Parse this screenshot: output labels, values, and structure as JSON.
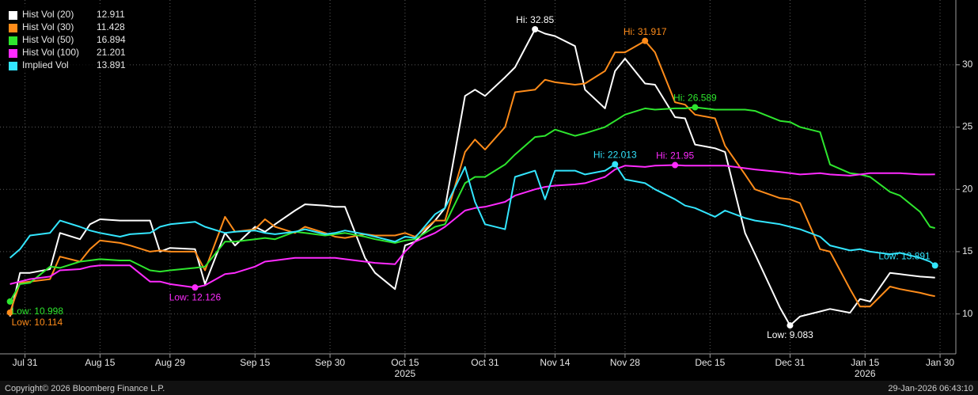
{
  "chart_data": {
    "type": "line",
    "x": [
      "2025-07-28",
      "2025-07-30",
      "2025-08-01",
      "2025-08-05",
      "2025-08-07",
      "2025-08-11",
      "2025-08-13",
      "2025-08-15",
      "2025-08-19",
      "2025-08-21",
      "2025-08-25",
      "2025-08-27",
      "2025-08-29",
      "2025-09-03",
      "2025-09-05",
      "2025-09-09",
      "2025-09-11",
      "2025-09-15",
      "2025-09-17",
      "2025-09-19",
      "2025-09-23",
      "2025-09-25",
      "2025-09-29",
      "2025-10-01",
      "2025-10-03",
      "2025-10-07",
      "2025-10-09",
      "2025-10-13",
      "2025-10-15",
      "2025-10-17",
      "2025-10-21",
      "2025-10-23",
      "2025-10-27",
      "2025-10-29",
      "2025-10-31",
      "2025-11-04",
      "2025-11-06",
      "2025-11-10",
      "2025-11-12",
      "2025-11-14",
      "2025-11-18",
      "2025-11-20",
      "2025-11-24",
      "2025-11-26",
      "2025-11-28",
      "2025-12-02",
      "2025-12-04",
      "2025-12-08",
      "2025-12-10",
      "2025-12-12",
      "2025-12-16",
      "2025-12-18",
      "2025-12-22",
      "2025-12-24",
      "2025-12-29",
      "2025-12-31",
      "2026-01-02",
      "2026-01-06",
      "2026-01-08",
      "2026-01-12",
      "2026-01-14",
      "2026-01-16",
      "2026-01-20",
      "2026-01-22",
      "2026-01-26",
      "2026-01-28",
      "2026-01-29"
    ],
    "series": [
      {
        "name": "Hist Vol (20)",
        "color": "#ffffff",
        "high_label": "Hi: 32.85",
        "low_label": "Low: 9.083",
        "values": [
          9.8,
          13.3,
          13.3,
          13.6,
          16.5,
          16,
          17.2,
          17.6,
          17.5,
          17.5,
          17.5,
          15,
          15.3,
          15.2,
          12.4,
          16.5,
          15.5,
          17,
          16.6,
          17.2,
          18.3,
          18.8,
          18.7,
          18.6,
          18.6,
          14.5,
          13.3,
          12,
          15.5,
          15.8,
          17.5,
          18.5,
          27.5,
          28,
          27.5,
          29,
          29.8,
          32.85,
          32.5,
          32.3,
          31.5,
          28,
          26.5,
          29.5,
          30.5,
          28.5,
          28.4,
          25.8,
          25.7,
          23.6,
          23.3,
          23,
          16.5,
          14.8,
          10.5,
          9.083,
          9.8,
          10.2,
          10.4,
          10.1,
          11.2,
          11,
          13.3,
          13.2,
          13,
          12.95,
          12.911
        ]
      },
      {
        "name": "Hist Vol (30)",
        "color": "#ff8c1a",
        "high_label": "Hi: 31.917",
        "low_label": "Low: 10.114",
        "values": [
          10.114,
          12.5,
          12.6,
          12.8,
          14.6,
          14.2,
          15.2,
          15.9,
          15.7,
          15.5,
          15,
          15.1,
          15,
          15,
          13.5,
          17.8,
          16.6,
          16.8,
          17.6,
          17,
          16.5,
          17,
          16.5,
          16.2,
          16.1,
          16.4,
          16.3,
          16.3,
          16.5,
          16.2,
          17.5,
          17.5,
          23,
          24,
          23.2,
          25,
          27.8,
          28,
          28.8,
          28.6,
          28.4,
          28.5,
          29.5,
          31,
          31,
          31.917,
          31,
          27,
          26.8,
          26,
          25.7,
          23.5,
          21.2,
          20,
          19.3,
          19.2,
          18.9,
          15.2,
          15,
          12,
          10.6,
          10.6,
          12.2,
          12,
          11.7,
          11.5,
          11.428
        ]
      },
      {
        "name": "Hist Vol (50)",
        "color": "#2ee62e",
        "high_label": "Hi: 26.589",
        "low_label": "Low: 10.998",
        "values": [
          10.998,
          12.4,
          12.5,
          13.8,
          13.7,
          14.2,
          14.3,
          14.4,
          14.3,
          14.3,
          13.5,
          13.4,
          13.5,
          13.7,
          13.8,
          15.8,
          15.8,
          16,
          16.1,
          16,
          16.6,
          16.5,
          16.3,
          16.4,
          16.5,
          16.2,
          16,
          15.7,
          15.9,
          16,
          17,
          17.2,
          20.5,
          21,
          21,
          22,
          22.8,
          24.2,
          24.3,
          24.8,
          24.3,
          24.5,
          25,
          25.5,
          26,
          26.5,
          26.4,
          26.5,
          26.5,
          26.589,
          26.4,
          26.4,
          26.4,
          26.3,
          25.5,
          25.4,
          25,
          24.6,
          22,
          21.3,
          21.2,
          21,
          19.8,
          19.5,
          18.2,
          17,
          16.894
        ]
      },
      {
        "name": "Hist Vol (100)",
        "color": "#ff2bff",
        "high_label": "Hi: 21.95",
        "low_label": "Low: 12.126",
        "values": [
          12.4,
          12.6,
          12.8,
          13,
          13.5,
          13.6,
          13.8,
          13.9,
          13.9,
          13.9,
          12.6,
          12.6,
          12.4,
          12.126,
          12.3,
          13.2,
          13.3,
          13.8,
          14.2,
          14.3,
          14.5,
          14.5,
          14.5,
          14.5,
          14.4,
          14.2,
          14.1,
          14,
          15,
          15.8,
          16.5,
          17,
          18.3,
          18.5,
          18.6,
          19,
          19.5,
          20,
          20.2,
          20.3,
          20.4,
          20.5,
          21,
          21.6,
          21.9,
          21.8,
          21.9,
          21.95,
          21.9,
          21.9,
          21.9,
          21.9,
          21.7,
          21.6,
          21.4,
          21.3,
          21.2,
          21.3,
          21.2,
          21.1,
          21.2,
          21.3,
          21.3,
          21.3,
          21.2,
          21.2,
          21.201
        ]
      },
      {
        "name": "Implied Vol",
        "color": "#33e6ff",
        "high_label": "Hi: 22.013",
        "low_label": "Low: 13.891",
        "values": [
          14.5,
          15.2,
          16.3,
          16.5,
          17.5,
          17,
          16.7,
          16.5,
          16.2,
          16.4,
          16.5,
          17,
          17.2,
          17.4,
          17,
          16.5,
          16.6,
          16.7,
          16.5,
          16.4,
          16.6,
          16.8,
          16.4,
          16.5,
          16.7,
          16.4,
          16.2,
          15.8,
          16.2,
          16.1,
          18,
          18.5,
          21.8,
          19,
          17.2,
          16.8,
          21,
          21.5,
          19.2,
          21.5,
          21.5,
          21.2,
          21.5,
          22.013,
          20.8,
          20.5,
          20,
          19.2,
          18.7,
          18.5,
          17.8,
          18.3,
          17.7,
          17.5,
          17.2,
          17,
          16.8,
          16.2,
          15.5,
          15.1,
          15.2,
          15,
          14.8,
          14.9,
          14.5,
          14.2,
          13.891
        ]
      }
    ],
    "xlim": [
      "2025-07-26",
      "2026-02-02"
    ],
    "xticks": [
      {
        "value": "2025-07-31",
        "label": "Jul 31"
      },
      {
        "value": "2025-08-15",
        "label": "Aug 15"
      },
      {
        "value": "2025-08-29",
        "label": "Aug 29"
      },
      {
        "value": "2025-09-15",
        "label": "Sep 15"
      },
      {
        "value": "2025-09-30",
        "label": "Sep 30"
      },
      {
        "value": "2025-10-15",
        "label": "Oct 15"
      },
      {
        "value": "2025-10-31",
        "label": "Oct 31"
      },
      {
        "value": "2025-11-14",
        "label": "Nov 14"
      },
      {
        "value": "2025-11-28",
        "label": "Nov 28"
      },
      {
        "value": "2025-12-15",
        "label": "Dec 15"
      },
      {
        "value": "2025-12-31",
        "label": "Dec 31"
      },
      {
        "value": "2026-01-15",
        "label": "Jan 15"
      },
      {
        "value": "2026-01-30",
        "label": "Jan 30"
      }
    ],
    "year_labels": [
      {
        "value": "2025-10-15",
        "label": "2025"
      },
      {
        "value": "2026-01-15",
        "label": "2026"
      }
    ],
    "ylim": [
      6.8,
      35.2
    ],
    "yticks": [
      10,
      15,
      20,
      25,
      30
    ],
    "grid": true,
    "legend": "top-left",
    "copyright": "Copyright© 2026 Bloomberg Finance L.P.",
    "timestamp": "29-Jan-2026 06:43:10"
  }
}
